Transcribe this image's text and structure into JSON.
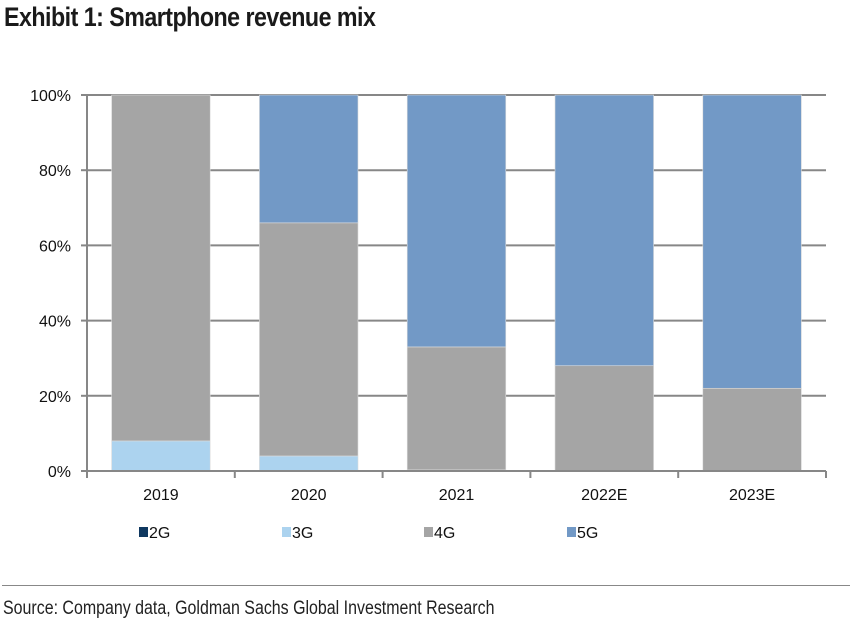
{
  "title": "Exhibit 1: Smartphone revenue mix",
  "source": "Source: Company data, Goldman Sachs Global Investment Research",
  "chart_data": {
    "type": "bar",
    "stacked": true,
    "title": "Exhibit 1: Smartphone revenue mix",
    "xlabel": "",
    "ylabel": "",
    "categories": [
      "2019",
      "2020",
      "2021",
      "2022E",
      "2023E"
    ],
    "series": [
      {
        "name": "2G",
        "color": "#0f3860",
        "values": [
          0,
          0,
          0,
          0,
          0
        ]
      },
      {
        "name": "3G",
        "color": "#acd3ef",
        "values": [
          8,
          4,
          0.3,
          0,
          0
        ]
      },
      {
        "name": "4G",
        "color": "#a5a5a5",
        "values": [
          92,
          62,
          32.7,
          28,
          22
        ]
      },
      {
        "name": "5G",
        "color": "#7299c6",
        "values": [
          0,
          34,
          67,
          72,
          78
        ]
      }
    ],
    "ylim": [
      0,
      100
    ],
    "yticks": [
      0,
      20,
      40,
      60,
      80,
      100
    ],
    "ytick_labels": [
      "0%",
      "20%",
      "40%",
      "60%",
      "80%",
      "100%"
    ],
    "grid": true,
    "legend": {
      "position": "bottom",
      "entries": [
        "2G",
        "3G",
        "4G",
        "5G"
      ]
    }
  }
}
